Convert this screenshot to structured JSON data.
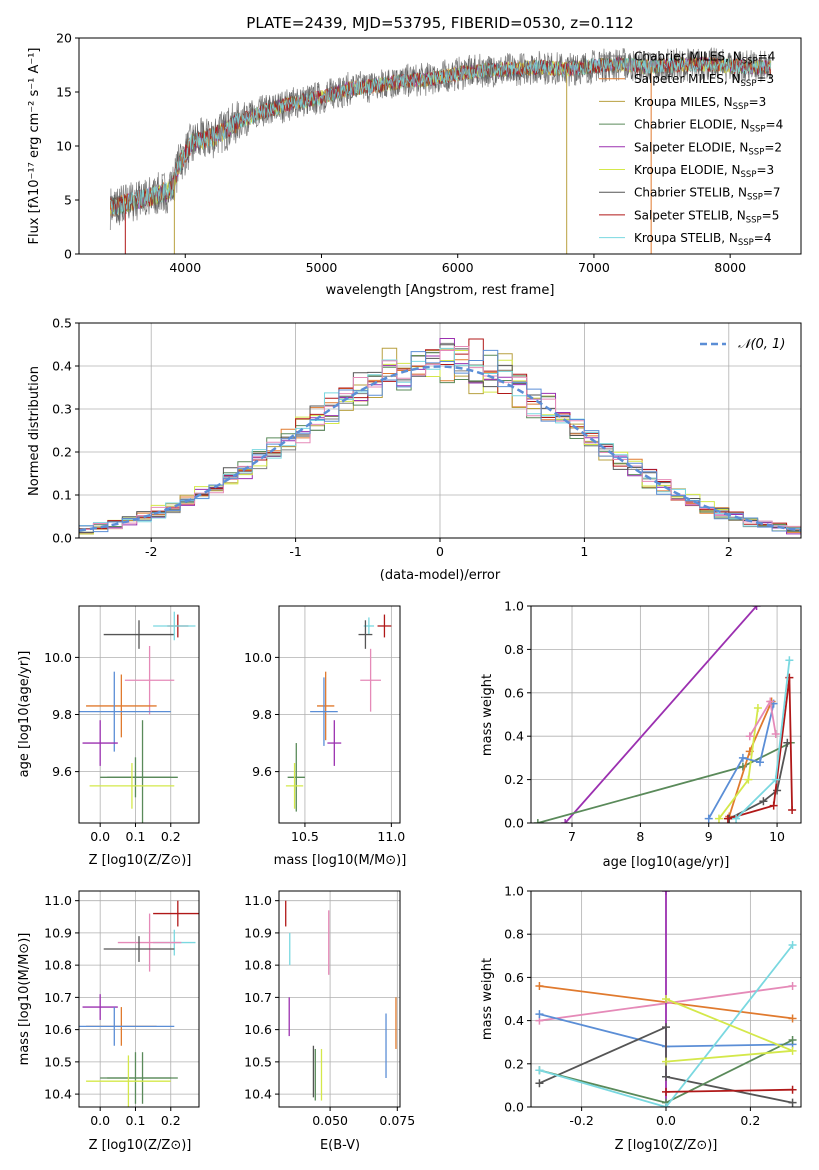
{
  "chart_data": [
    {
      "id": "spectrum",
      "type": "line",
      "title": "PLATE=2439, MJD=53795, FIBERID=0530, z=0.112",
      "xlabel": "wavelength [Angstrom, rest frame]",
      "ylabel": "Flux [fλ10⁻¹⁷ erg cm⁻² s⁻¹ A⁻¹]",
      "xlim": [
        3220,
        8520
      ],
      "ylim": [
        0,
        20
      ],
      "xticks": [
        4000,
        5000,
        6000,
        7000,
        8000
      ],
      "yticks": [
        0,
        5,
        10,
        15,
        20
      ],
      "legend": "top-right",
      "series": [
        {
          "name": "Chabrier MILES, N_SSP=4",
          "color": "#7f7f7f"
        },
        {
          "name": "Salpeter MILES, N_SSP=3",
          "color": "#e07a2e"
        },
        {
          "name": "Kroupa MILES, N_SSP=3",
          "color": "#b8a040"
        },
        {
          "name": "Chabrier ELODIE, N_SSP=4",
          "color": "#5a8a5a"
        },
        {
          "name": "Salpeter ELODIE, N_SSP=2",
          "color": "#9b30b0"
        },
        {
          "name": "Kroupa ELODIE, N_SSP=3",
          "color": "#d4e84a"
        },
        {
          "name": "Chabrier STELIB, N_SSP=7",
          "color": "#555555"
        },
        {
          "name": "Salpeter STELIB, N_SSP=5",
          "color": "#b01818"
        },
        {
          "name": "Kroupa STELIB, N_SSP=4",
          "color": "#7ad8e0"
        }
      ],
      "continuum": {
        "x": [
          3450,
          3600,
          3800,
          3900,
          3950,
          4050,
          4200,
          4400,
          4600,
          4800,
          5000,
          5200,
          5400,
          5600,
          5800,
          6000,
          6200,
          6400,
          6600,
          6800,
          7000,
          7200,
          7400,
          7600,
          7800,
          8000,
          8200,
          8300
        ],
        "y": [
          4.3,
          4.8,
          5.5,
          6.0,
          8.2,
          10.3,
          10.8,
          12.3,
          13.3,
          14.0,
          14.5,
          15.3,
          15.6,
          16.0,
          16.2,
          16.7,
          17.0,
          17.1,
          17.3,
          17.1,
          17.4,
          17.6,
          17.3,
          17.5,
          17.6,
          17.4,
          17.3,
          17.2
        ]
      }
    },
    {
      "id": "residuals",
      "type": "line",
      "xlabel": "(data-model)/error",
      "ylabel": "Normed distribution",
      "xlim": [
        -2.5,
        2.5
      ],
      "ylim": [
        0,
        0.5
      ],
      "xticks": [
        -2,
        -1,
        0,
        1,
        2
      ],
      "yticks": [
        0.0,
        0.1,
        0.2,
        0.3,
        0.4,
        0.5
      ],
      "legend": "top-right",
      "gaussian_label": "𝒩(0, 1)",
      "gaussian_color": "#5b8ed6",
      "histogram_bins": [
        -2.5,
        -2.4,
        -2.3,
        -2.2,
        -2.1,
        -2.0,
        -1.9,
        -1.8,
        -1.7,
        -1.6,
        -1.5,
        -1.4,
        -1.3,
        -1.2,
        -1.1,
        -1.0,
        -0.9,
        -0.8,
        -0.7,
        -0.6,
        -0.5,
        -0.4,
        -0.3,
        -0.2,
        -0.1,
        0.0,
        0.1,
        0.2,
        0.3,
        0.4,
        0.5,
        0.6,
        0.7,
        0.8,
        0.9,
        1.0,
        1.1,
        1.2,
        1.3,
        1.4,
        1.5,
        1.6,
        1.7,
        1.8,
        1.9,
        2.0,
        2.1,
        2.2,
        2.3,
        2.4,
        2.5
      ],
      "histogram_colors": [
        "#7f7f7f",
        "#e07a2e",
        "#b8a040",
        "#5a8a5a",
        "#9b30b0",
        "#d4e84a",
        "#555555",
        "#b01818",
        "#7ad8e0",
        "#e58ab8",
        "#5b8ed6"
      ]
    },
    {
      "id": "age-vs-Z",
      "type": "scatter",
      "xlabel": "Z [log10(Z/Z⊙)]",
      "ylabel": "age  [log10(age/yr)]",
      "xlim": [
        -0.06,
        0.28
      ],
      "ylim": [
        9.42,
        10.18
      ],
      "xticks": [
        0.0,
        0.1,
        0.2
      ],
      "yticks": [
        9.6,
        9.8,
        10.0
      ],
      "points": [
        {
          "x": 0.11,
          "y": 10.08,
          "xerr": 0.1,
          "yerr": 0.05,
          "color": "#555555"
        },
        {
          "x": 0.22,
          "y": 10.11,
          "xerr": 0.03,
          "yerr": 0.04,
          "color": "#b01818"
        },
        {
          "x": 0.21,
          "y": 10.11,
          "xerr": 0.06,
          "yerr": 0.05,
          "color": "#7ad8e0"
        },
        {
          "x": 0.14,
          "y": 9.92,
          "xerr": 0.07,
          "yerr": 0.12,
          "color": "#e58ab8"
        },
        {
          "x": 0.06,
          "y": 9.83,
          "xerr": 0.1,
          "yerr": 0.11,
          "color": "#e07a2e"
        },
        {
          "x": 0.04,
          "y": 9.81,
          "xerr": 0.16,
          "yerr": 0.14,
          "color": "#5b8ed6"
        },
        {
          "x": 0.0,
          "y": 9.7,
          "xerr": 0.05,
          "yerr": 0.08,
          "color": "#9b30b0"
        },
        {
          "x": 0.1,
          "y": 9.58,
          "xerr": 0.1,
          "yerr": 0.07,
          "color": "#5a8a5a"
        },
        {
          "x": 0.12,
          "y": 9.58,
          "xerr": 0.1,
          "yerr": 0.2,
          "color": "#5a8a5a"
        },
        {
          "x": 0.09,
          "y": 9.55,
          "xerr": 0.12,
          "yerr": 0.08,
          "color": "#d4e84a"
        }
      ]
    },
    {
      "id": "age-vs-mass",
      "type": "scatter",
      "xlabel": "mass [log10(M/M⊙)]",
      "ylabel": "",
      "xlim": [
        10.35,
        11.05
      ],
      "ylim": [
        9.42,
        10.18
      ],
      "xticks": [
        10.5,
        11.0
      ],
      "yticks": [
        9.6,
        9.8,
        10.0
      ],
      "points": [
        {
          "x": 10.87,
          "y": 10.11,
          "xerr": 0.03,
          "yerr": 0.03,
          "color": "#7ad8e0"
        },
        {
          "x": 10.96,
          "y": 10.11,
          "xerr": 0.04,
          "yerr": 0.04,
          "color": "#b01818"
        },
        {
          "x": 10.85,
          "y": 10.08,
          "xerr": 0.04,
          "yerr": 0.05,
          "color": "#555555"
        },
        {
          "x": 10.88,
          "y": 9.92,
          "xerr": 0.06,
          "yerr": 0.11,
          "color": "#e58ab8"
        },
        {
          "x": 10.62,
          "y": 9.83,
          "xerr": 0.05,
          "yerr": 0.12,
          "color": "#e07a2e"
        },
        {
          "x": 10.61,
          "y": 9.81,
          "xerr": 0.08,
          "yerr": 0.12,
          "color": "#5b8ed6"
        },
        {
          "x": 10.67,
          "y": 9.7,
          "xerr": 0.04,
          "yerr": 0.08,
          "color": "#9b30b0"
        },
        {
          "x": 10.45,
          "y": 9.58,
          "xerr": 0.05,
          "yerr": 0.12,
          "color": "#5a8a5a"
        },
        {
          "x": 10.44,
          "y": 9.55,
          "xerr": 0.05,
          "yerr": 0.08,
          "color": "#d4e84a"
        }
      ]
    },
    {
      "id": "mass-weight-vs-age",
      "type": "line",
      "xlabel": "age  [log10(age/yr)]",
      "ylabel": "mass weight",
      "xlim": [
        6.4,
        10.35
      ],
      "ylim": [
        0,
        1.0
      ],
      "xticks": [
        7,
        8,
        9,
        10
      ],
      "yticks": [
        0.0,
        0.2,
        0.4,
        0.6,
        0.8,
        1.0
      ],
      "series": [
        {
          "color": "#9b30b0",
          "x": [
            6.9,
            9.7
          ],
          "y": [
            0.0,
            1.0
          ]
        },
        {
          "color": "#5a8a5a",
          "x": [
            6.5,
            9.5,
            10.2
          ],
          "y": [
            0.0,
            0.26,
            0.37
          ]
        },
        {
          "color": "#e07a2e",
          "x": [
            9.3,
            9.6,
            9.92
          ],
          "y": [
            0.03,
            0.33,
            0.56
          ]
        },
        {
          "color": "#d4e84a",
          "x": [
            9.15,
            9.58,
            9.72
          ],
          "y": [
            0.02,
            0.2,
            0.53
          ]
        },
        {
          "color": "#5b8ed6",
          "x": [
            9.0,
            9.5,
            9.75,
            9.95
          ],
          "y": [
            0.02,
            0.3,
            0.28,
            0.55
          ]
        },
        {
          "color": "#555555",
          "x": [
            9.3,
            9.8,
            10.0,
            10.15
          ],
          "y": [
            0.02,
            0.1,
            0.15,
            0.37
          ]
        },
        {
          "color": "#b01818",
          "x": [
            9.28,
            9.95,
            10.18,
            10.22
          ],
          "y": [
            0.02,
            0.08,
            0.67,
            0.06
          ]
        },
        {
          "color": "#7ad8e0",
          "x": [
            9.4,
            9.98,
            10.18
          ],
          "y": [
            0.02,
            0.2,
            0.75
          ]
        },
        {
          "color": "#e58ab8",
          "x": [
            9.6,
            9.9,
            9.98
          ],
          "y": [
            0.4,
            0.56,
            0.41
          ]
        }
      ]
    },
    {
      "id": "mass-vs-Z",
      "type": "scatter",
      "xlabel": "Z [log10(Z/Z⊙)]",
      "ylabel": "mass [log10(M/M⊙)]",
      "xlim": [
        -0.06,
        0.28
      ],
      "ylim": [
        10.36,
        11.03
      ],
      "xticks": [
        0.0,
        0.1,
        0.2
      ],
      "yticks": [
        10.4,
        10.5,
        10.6,
        10.7,
        10.8,
        10.9,
        11.0
      ],
      "points": [
        {
          "x": 0.22,
          "y": 10.96,
          "xerr": 0.07,
          "yerr": 0.04,
          "color": "#b01818"
        },
        {
          "x": 0.21,
          "y": 10.87,
          "xerr": 0.06,
          "yerr": 0.04,
          "color": "#7ad8e0"
        },
        {
          "x": 0.14,
          "y": 10.87,
          "xerr": 0.09,
          "yerr": 0.09,
          "color": "#e58ab8"
        },
        {
          "x": 0.11,
          "y": 10.85,
          "xerr": 0.1,
          "yerr": 0.04,
          "color": "#555555"
        },
        {
          "x": 0.0,
          "y": 10.67,
          "xerr": 0.05,
          "yerr": 0.04,
          "color": "#9b30b0"
        },
        {
          "x": 0.06,
          "y": 10.61,
          "xerr": 0.1,
          "yerr": 0.06,
          "color": "#e07a2e"
        },
        {
          "x": 0.04,
          "y": 10.61,
          "xerr": 0.17,
          "yerr": 0.06,
          "color": "#5b8ed6"
        },
        {
          "x": 0.1,
          "y": 10.45,
          "xerr": 0.1,
          "yerr": 0.08,
          "color": "#5a8a5a"
        },
        {
          "x": 0.12,
          "y": 10.45,
          "xerr": 0.1,
          "yerr": 0.08,
          "color": "#5a8a5a"
        },
        {
          "x": 0.08,
          "y": 10.44,
          "xerr": 0.12,
          "yerr": 0.08,
          "color": "#d4e84a"
        }
      ]
    },
    {
      "id": "mass-vs-ebv",
      "type": "scatter",
      "xlabel": "E(B-V)",
      "ylabel": "",
      "xlim": [
        0.031,
        0.076
      ],
      "ylim": [
        10.36,
        11.03
      ],
      "xticks": [
        0.05,
        0.075
      ],
      "xtick_labels": [
        "0.050",
        "0.075"
      ],
      "yticks": [
        10.4,
        10.5,
        10.6,
        10.7,
        10.8,
        10.9,
        11.0
      ],
      "points": [
        {
          "x": 0.0335,
          "y": 10.96,
          "yerr": 0.04,
          "color": "#b01818"
        },
        {
          "x": 0.035,
          "y": 10.85,
          "yerr": 0.05,
          "color": "#7ad8e0"
        },
        {
          "x": 0.0495,
          "y": 10.87,
          "yerr": 0.1,
          "color": "#e58ab8"
        },
        {
          "x": 0.0348,
          "y": 10.64,
          "yerr": 0.06,
          "color": "#9b30b0"
        },
        {
          "x": 0.0438,
          "y": 10.47,
          "yerr": 0.08,
          "color": "#555555"
        },
        {
          "x": 0.0445,
          "y": 10.46,
          "yerr": 0.08,
          "color": "#5a8a5a"
        },
        {
          "x": 0.0468,
          "y": 10.46,
          "yerr": 0.08,
          "color": "#d4e84a"
        },
        {
          "x": 0.0708,
          "y": 10.55,
          "yerr": 0.1,
          "color": "#5b8ed6"
        },
        {
          "x": 0.0745,
          "y": 10.62,
          "yerr": 0.08,
          "color": "#e07a2e"
        }
      ]
    },
    {
      "id": "mass-weight-vs-Z",
      "type": "line",
      "xlabel": "Z [log10(Z/Z⊙)]",
      "ylabel": "mass weight",
      "xlim": [
        -0.32,
        0.32
      ],
      "ylim": [
        0,
        1.0
      ],
      "xticks": [
        -0.2,
        0.0,
        0.2
      ],
      "yticks": [
        0.0,
        0.2,
        0.4,
        0.6,
        0.8,
        1.0
      ],
      "series": [
        {
          "color": "#e07a2e",
          "x": [
            -0.3,
            0.3
          ],
          "y": [
            0.56,
            0.41
          ]
        },
        {
          "color": "#e58ab8",
          "x": [
            -0.3,
            0.3
          ],
          "y": [
            0.4,
            0.56
          ]
        },
        {
          "color": "#5b8ed6",
          "x": [
            -0.3,
            0.0,
            0.3
          ],
          "y": [
            0.43,
            0.28,
            0.29
          ]
        },
        {
          "color": "#9b30b0",
          "x": [
            0.0,
            0.0
          ],
          "y": [
            1.0,
            0.0
          ]
        },
        {
          "color": "#555555",
          "x": [
            -0.3,
            0.0,
            0.0,
            0.3
          ],
          "y": [
            0.11,
            0.37,
            0.14,
            0.02
          ]
        },
        {
          "color": "#5a8a5a",
          "x": [
            -0.3,
            0.0,
            0.3
          ],
          "y": [
            0.17,
            0.02,
            0.31
          ]
        },
        {
          "color": "#7ad8e0",
          "x": [
            -0.3,
            0.0,
            0.3
          ],
          "y": [
            0.17,
            0.0,
            0.75
          ]
        },
        {
          "color": "#d4e84a",
          "x": [
            0.0,
            0.3,
            0.0
          ],
          "y": [
            0.21,
            0.26,
            0.5
          ]
        },
        {
          "color": "#b01818",
          "x": [
            0.0,
            0.3
          ],
          "y": [
            0.07,
            0.08
          ]
        }
      ]
    }
  ]
}
